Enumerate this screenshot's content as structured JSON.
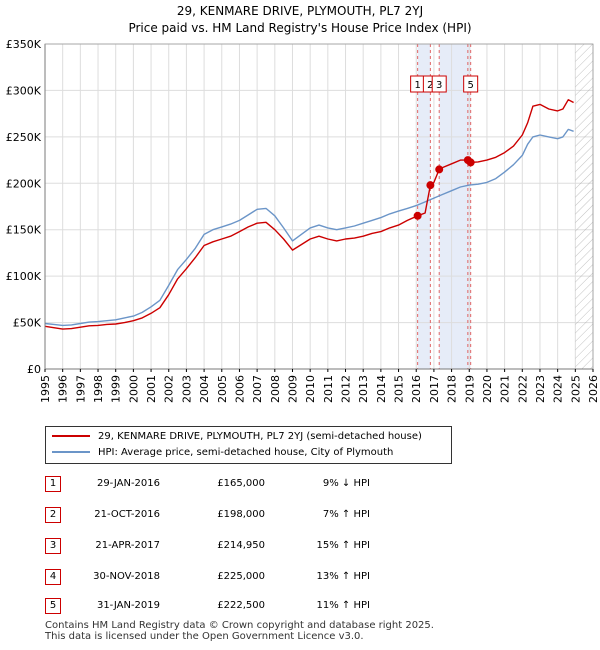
{
  "chart_data": {
    "type": "line",
    "title": "29, KENMARE DRIVE, PLYMOUTH, PL7 2YJ",
    "subtitle": "Price paid vs. HM Land Registry's House Price Index (HPI)",
    "xlabel": "",
    "ylabel": "",
    "xlim": [
      1995,
      2026
    ],
    "ylim": [
      0,
      350000
    ],
    "y_ticks": [
      0,
      50000,
      100000,
      150000,
      200000,
      250000,
      300000,
      350000
    ],
    "y_tick_labels": [
      "£0",
      "£50K",
      "£100K",
      "£150K",
      "£200K",
      "£250K",
      "£300K",
      "£350K"
    ],
    "x_ticks": [
      1995,
      1996,
      1997,
      1998,
      1999,
      2000,
      2001,
      2002,
      2003,
      2004,
      2005,
      2006,
      2007,
      2008,
      2009,
      2010,
      2011,
      2012,
      2013,
      2014,
      2015,
      2016,
      2017,
      2018,
      2019,
      2020,
      2021,
      2022,
      2023,
      2024,
      2025,
      2026
    ],
    "grid": true,
    "series": [
      {
        "name": "29, KENMARE DRIVE, PLYMOUTH, PL7 2YJ (semi-detached house)",
        "color": "#cc0000",
        "x": [
          1995.0,
          1995.5,
          1996.0,
          1996.5,
          1997.0,
          1997.5,
          1998.0,
          1998.5,
          1999.0,
          1999.5,
          2000.0,
          2000.5,
          2001.0,
          2001.5,
          2002.0,
          2002.5,
          2003.0,
          2003.5,
          2004.0,
          2004.5,
          2005.0,
          2005.5,
          2006.0,
          2006.5,
          2007.0,
          2007.5,
          2008.0,
          2008.5,
          2009.0,
          2009.5,
          2010.0,
          2010.5,
          2011.0,
          2011.5,
          2012.0,
          2012.5,
          2013.0,
          2013.5,
          2014.0,
          2014.5,
          2015.0,
          2015.5,
          2016.08,
          2016.5,
          2016.8,
          2017.0,
          2017.3,
          2017.5,
          2018.0,
          2018.5,
          2018.92,
          2019.08,
          2019.5,
          2020.0,
          2020.5,
          2021.0,
          2021.5,
          2022.0,
          2022.3,
          2022.6,
          2023.0,
          2023.5,
          2024.0,
          2024.3,
          2024.6,
          2024.9
        ],
        "values": [
          46000,
          44500,
          43000,
          43500,
          45000,
          46500,
          47000,
          48000,
          48500,
          50000,
          52000,
          55000,
          60000,
          66000,
          80000,
          97000,
          108000,
          120000,
          133000,
          137000,
          140000,
          143000,
          148000,
          153000,
          157000,
          158000,
          150000,
          140000,
          128000,
          134000,
          140000,
          143000,
          140000,
          138000,
          140000,
          141000,
          143000,
          146000,
          148000,
          152000,
          155000,
          160000,
          165000,
          168000,
          198000,
          201000,
          214950,
          217000,
          221000,
          225000,
          225000,
          222500,
          223000,
          225000,
          228000,
          233000,
          240000,
          252000,
          265000,
          283000,
          285000,
          280000,
          278000,
          280000,
          290000,
          287000
        ]
      },
      {
        "name": "HPI: Average price, semi-detached house, City of Plymouth",
        "color": "#6b95c8",
        "x": [
          1995.0,
          1995.5,
          1996.0,
          1996.5,
          1997.0,
          1997.5,
          1998.0,
          1998.5,
          1999.0,
          1999.5,
          2000.0,
          2000.5,
          2001.0,
          2001.5,
          2002.0,
          2002.5,
          2003.0,
          2003.5,
          2004.0,
          2004.5,
          2005.0,
          2005.5,
          2006.0,
          2006.5,
          2007.0,
          2007.5,
          2008.0,
          2008.5,
          2009.0,
          2009.5,
          2010.0,
          2010.5,
          2011.0,
          2011.5,
          2012.0,
          2012.5,
          2013.0,
          2013.5,
          2014.0,
          2014.5,
          2015.0,
          2015.5,
          2016.0,
          2016.5,
          2017.0,
          2017.5,
          2018.0,
          2018.5,
          2019.0,
          2019.5,
          2020.0,
          2020.5,
          2021.0,
          2021.5,
          2022.0,
          2022.3,
          2022.6,
          2023.0,
          2023.5,
          2024.0,
          2024.3,
          2024.6,
          2024.9
        ],
        "values": [
          49000,
          48000,
          47000,
          47500,
          49000,
          50500,
          51000,
          52000,
          53000,
          55000,
          57000,
          61000,
          67000,
          74000,
          90000,
          107000,
          118000,
          130000,
          145000,
          150000,
          153000,
          156000,
          160000,
          166000,
          172000,
          173000,
          165000,
          152000,
          138000,
          145000,
          152000,
          155000,
          152000,
          150000,
          152000,
          154000,
          157000,
          160000,
          163000,
          167000,
          170000,
          173000,
          176000,
          180000,
          184000,
          188000,
          192000,
          196000,
          198000,
          199000,
          201000,
          205000,
          212000,
          220000,
          230000,
          242000,
          250000,
          252000,
          250000,
          248000,
          250000,
          258000,
          256000
        ]
      }
    ],
    "markers": [
      {
        "label": "1",
        "x": 2016.08,
        "y": 165000
      },
      {
        "label": "2",
        "x": 2016.8,
        "y": 198000
      },
      {
        "label": "3",
        "x": 2017.3,
        "y": 214950
      },
      {
        "label": "4",
        "x": 2018.92,
        "y": 225000
      },
      {
        "label": "5",
        "x": 2019.08,
        "y": 222500
      }
    ],
    "marker_label_boxes": [
      "1",
      "2",
      "3",
      "5"
    ],
    "shaded_ranges": [
      [
        2016.08,
        2016.8
      ],
      [
        2017.3,
        2019.08
      ]
    ],
    "future_hatch_from": 2025.0
  },
  "legend": {
    "items": [
      {
        "label": "29, KENMARE DRIVE, PLYMOUTH, PL7 2YJ (semi-detached house)",
        "color": "#cc0000"
      },
      {
        "label": "HPI: Average price, semi-detached house, City of Plymouth",
        "color": "#6b95c8"
      }
    ]
  },
  "transactions": [
    {
      "num": "1",
      "date": "29-JAN-2016",
      "price": "£165,000",
      "hpi": "9% ↓ HPI"
    },
    {
      "num": "2",
      "date": "21-OCT-2016",
      "price": "£198,000",
      "hpi": "7% ↑ HPI"
    },
    {
      "num": "3",
      "date": "21-APR-2017",
      "price": "£214,950",
      "hpi": "15% ↑ HPI"
    },
    {
      "num": "4",
      "date": "30-NOV-2018",
      "price": "£225,000",
      "hpi": "13% ↑ HPI"
    },
    {
      "num": "5",
      "date": "31-JAN-2019",
      "price": "£222,500",
      "hpi": "11% ↑ HPI"
    }
  ],
  "footer": {
    "line1": "Contains HM Land Registry data © Crown copyright and database right 2025.",
    "line2": "This data is licensed under the Open Government Licence v3.0."
  }
}
